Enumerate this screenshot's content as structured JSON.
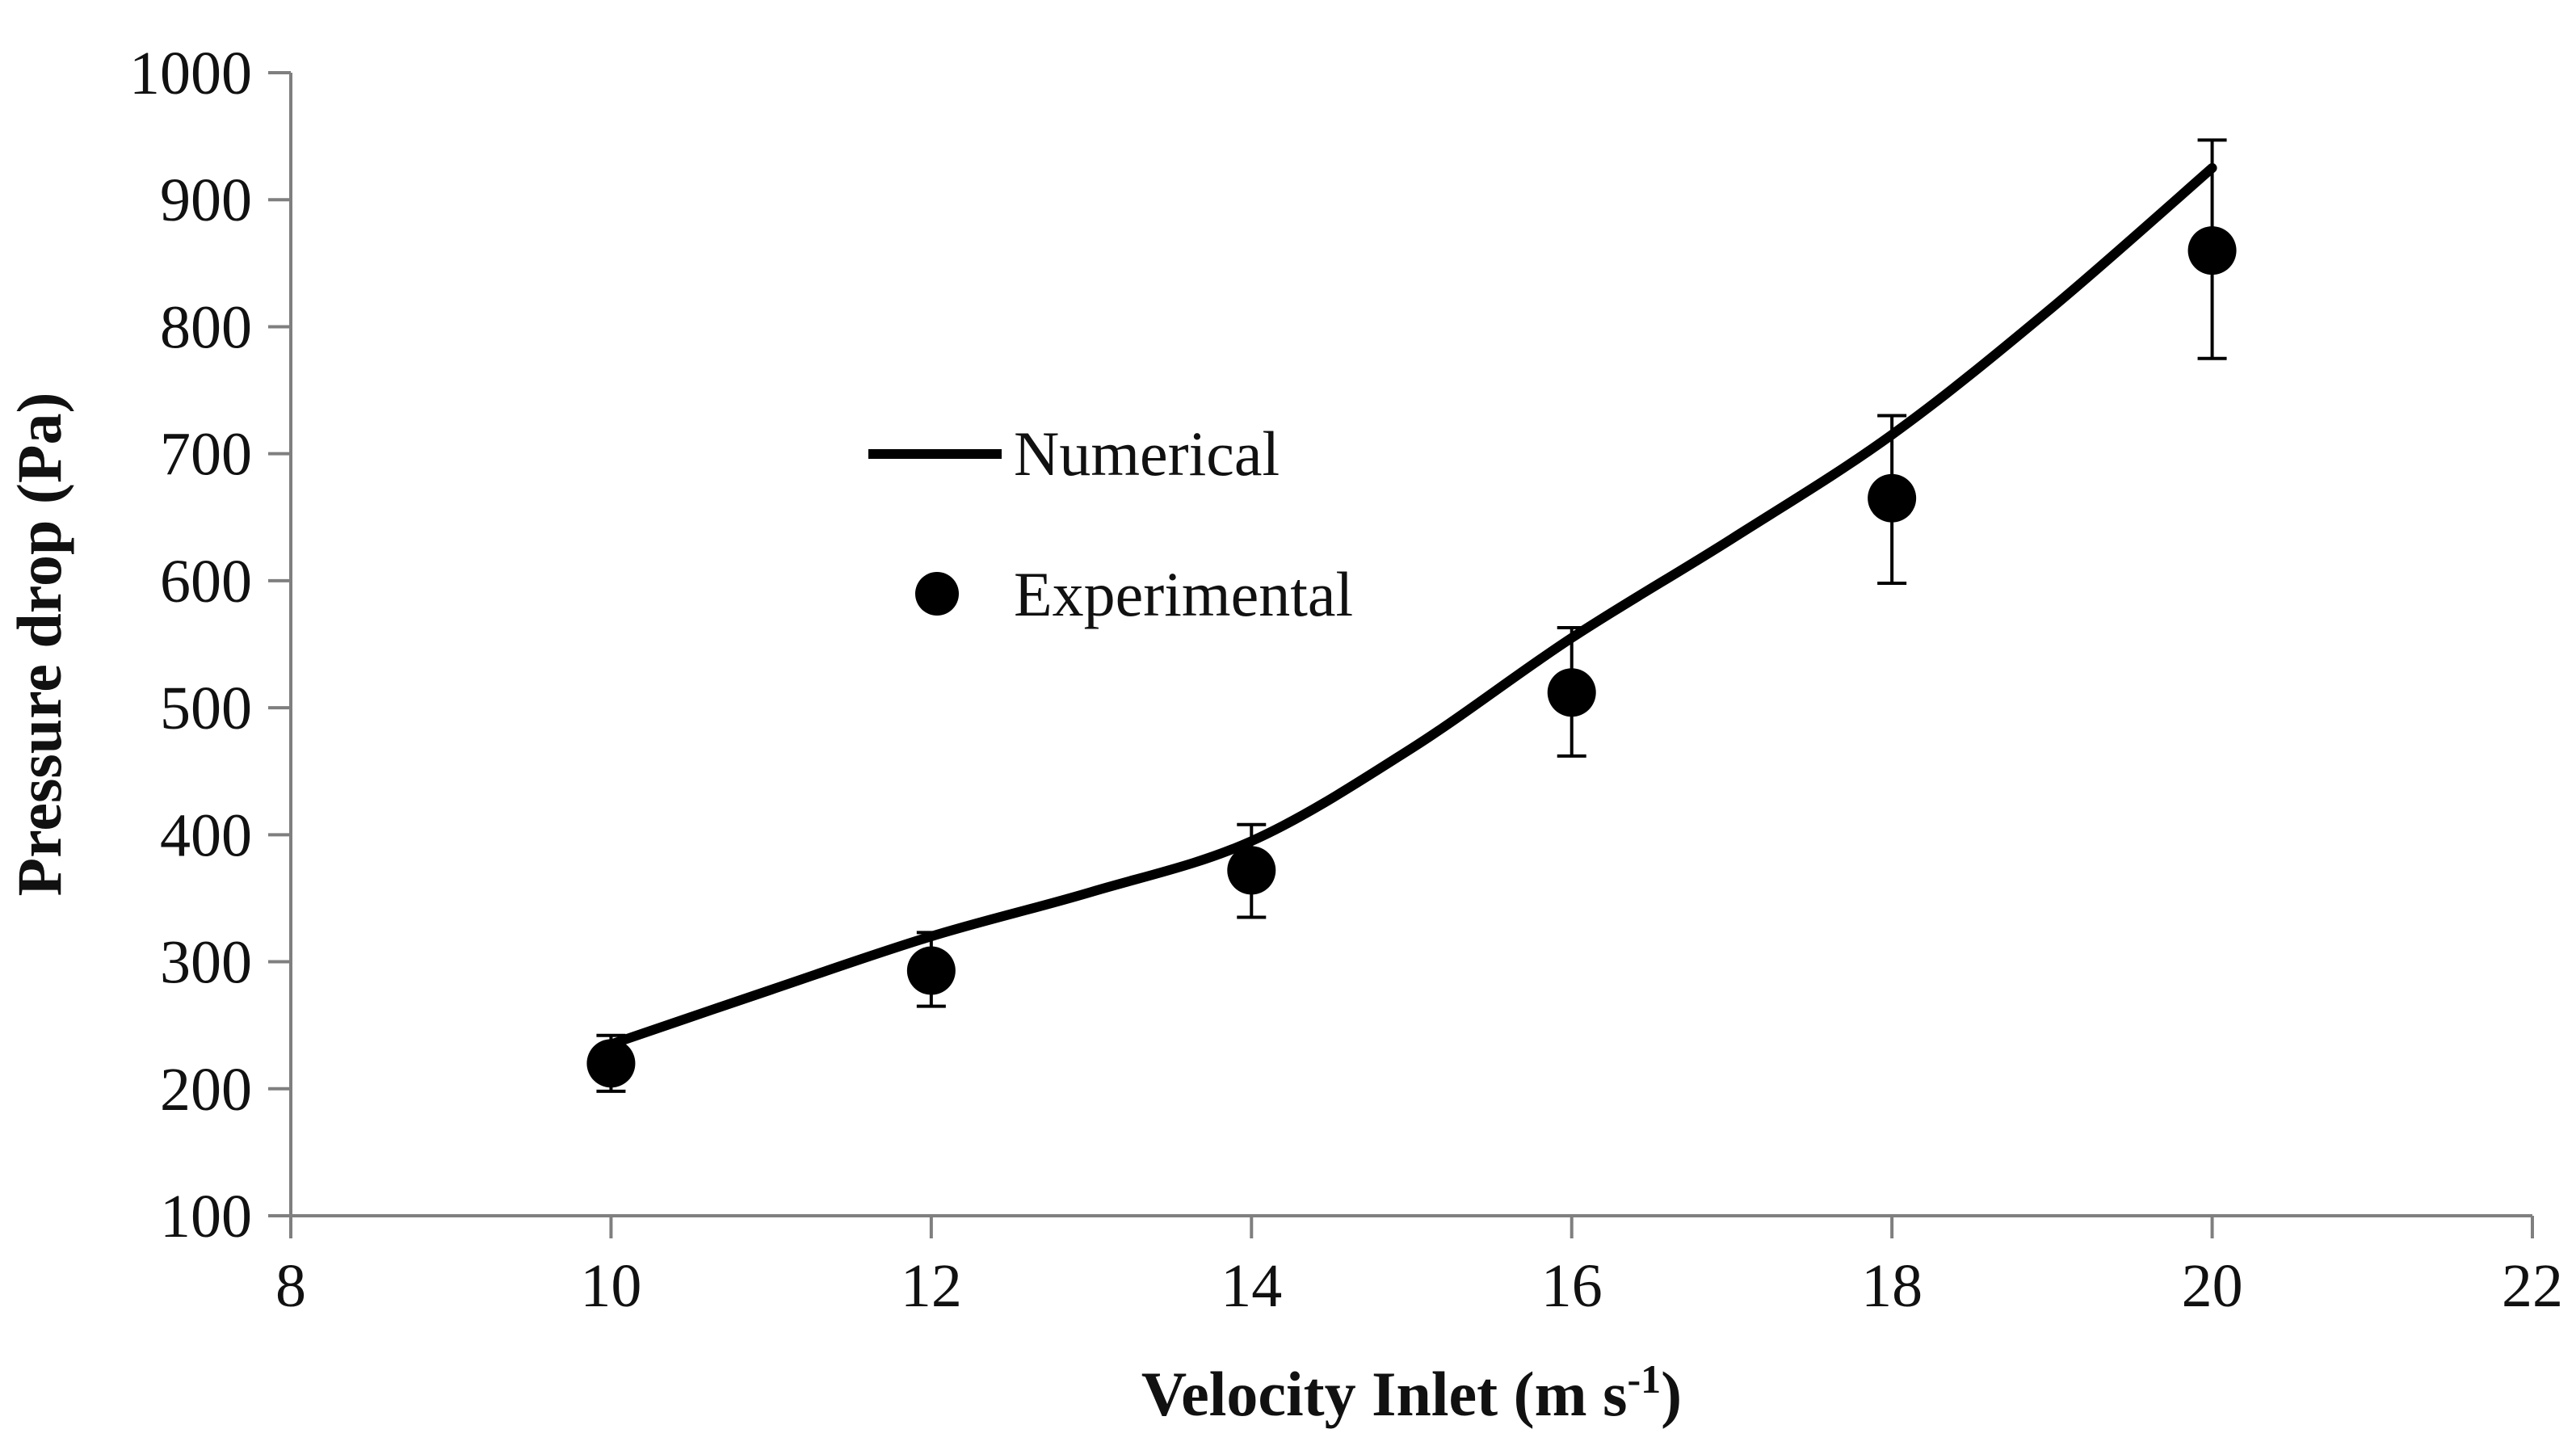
{
  "chart_data": {
    "type": "scatter",
    "title": "",
    "xlabel": "Velocity Inlet (m s",
    "xlabel_sup": "-1",
    "xlabel_tail": ")",
    "ylabel": "Pressure drop (Pa)",
    "xlim": [
      8,
      22
    ],
    "ylim": [
      100,
      1000
    ],
    "x_ticks": [
      8,
      10,
      12,
      14,
      16,
      18,
      20,
      22
    ],
    "y_ticks": [
      100,
      200,
      300,
      400,
      500,
      600,
      700,
      800,
      900,
      1000
    ],
    "grid": false,
    "legend_position": "center-left",
    "series": [
      {
        "name": "Numerical",
        "kind": "line",
        "x": [
          10,
          11,
          12,
          13,
          14,
          15,
          16,
          17,
          18,
          19,
          20
        ],
        "y": [
          235,
          278,
          320,
          355,
          395,
          468,
          555,
          633,
          715,
          815,
          925
        ]
      },
      {
        "name": "Experimental",
        "kind": "scatter",
        "x": [
          10,
          12,
          14,
          16,
          18,
          20
        ],
        "y": [
          220,
          293,
          372,
          512,
          665,
          860
        ],
        "err_low": [
          198,
          265,
          335,
          462,
          598,
          775
        ],
        "err_high": [
          242,
          323,
          408,
          563,
          730,
          947
        ]
      }
    ]
  },
  "legend": {
    "numerical_label": "Numerical",
    "experimental_label": "Experimental"
  },
  "colors": {
    "axis": "#7f7f7f",
    "series": "#000000",
    "text": "#111111"
  }
}
